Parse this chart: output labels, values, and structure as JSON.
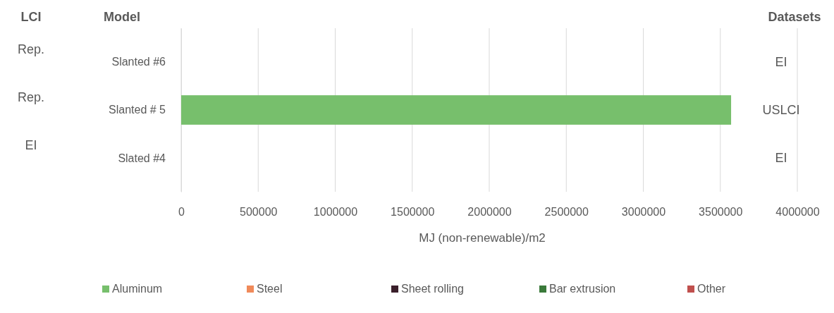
{
  "chart_data": {
    "type": "bar",
    "orientation": "horizontal",
    "categories": [
      "Slanted #6",
      "Slanted # 5",
      "Slated #4"
    ],
    "series": [
      {
        "name": "Aluminum",
        "color": "#77bf6c",
        "values": [
          0,
          3570000,
          0
        ]
      },
      {
        "name": "Steel",
        "color": "#f08a5a",
        "values": [
          0,
          0,
          0
        ]
      },
      {
        "name": "Sheet rolling",
        "color": "#3a1f2b",
        "values": [
          0,
          0,
          0
        ]
      },
      {
        "name": "Bar extrusion",
        "color": "#3a7a3a",
        "values": [
          0,
          0,
          0
        ]
      },
      {
        "name": "Other",
        "color": "#c0504d",
        "values": [
          0,
          0,
          0
        ]
      }
    ],
    "xlim": [
      0,
      4000000
    ],
    "xticks": [
      0,
      500000,
      1000000,
      1500000,
      2000000,
      2500000,
      3000000,
      3500000,
      4000000
    ],
    "xlabel": "MJ (non-renewable)/m2",
    "ylabel": "Model",
    "annotations": [
      "LCI",
      "Datasets",
      "Rep.",
      "Rep.",
      "EI",
      "EI",
      "USLCI",
      "EI"
    ],
    "grid": "x",
    "legend": "bottom"
  }
}
